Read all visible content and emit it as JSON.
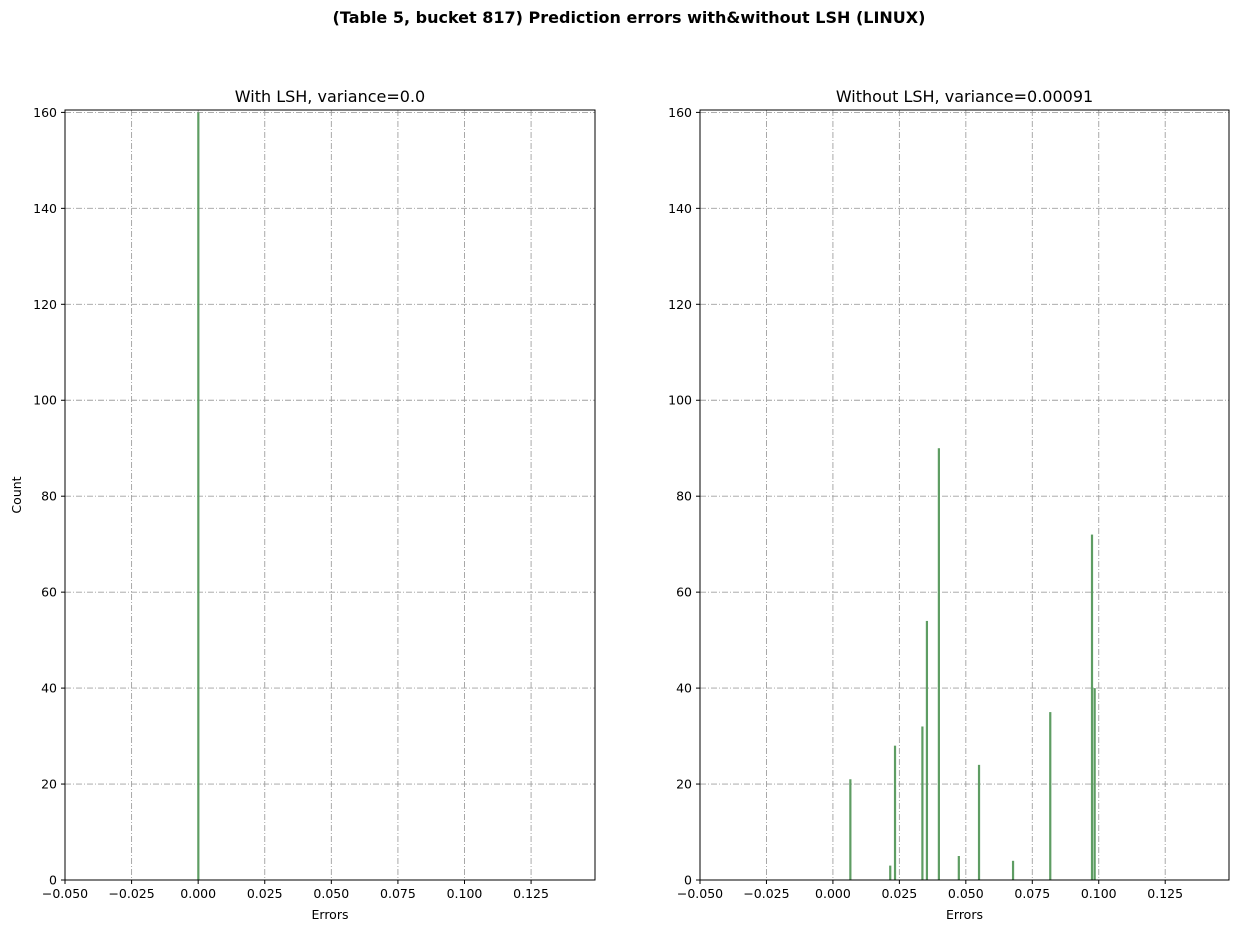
{
  "figure": {
    "title": "(Table 5, bucket 817) Prediction errors with&without LSH (LINUX)"
  },
  "chart_data": [
    {
      "type": "bar",
      "title": "With LSH, variance=0.0",
      "xlabel": "Errors",
      "ylabel": "Count",
      "xlim": [
        -0.05,
        0.149
      ],
      "ylim": [
        0,
        160.5
      ],
      "xticks": [
        -0.05,
        -0.025,
        0.0,
        0.025,
        0.05,
        0.075,
        0.1,
        0.125
      ],
      "xtick_labels": [
        "−0.050",
        "−0.025",
        "0.000",
        "0.025",
        "0.050",
        "0.075",
        "0.100",
        "0.125"
      ],
      "yticks": [
        0,
        20,
        40,
        60,
        80,
        100,
        120,
        140,
        160
      ],
      "ytick_labels": [
        "0",
        "20",
        "40",
        "60",
        "80",
        "100",
        "120",
        "140",
        "160"
      ],
      "grid": true,
      "bar_color": "#5e9d63",
      "bar_width": 0.0007,
      "bars": [
        {
          "x": 0.0,
          "count": 160
        }
      ]
    },
    {
      "type": "bar",
      "title": "Without LSH, variance=0.00091",
      "xlabel": "Errors",
      "ylabel": "",
      "xlim": [
        -0.05,
        0.149
      ],
      "ylim": [
        0,
        160.5
      ],
      "xticks": [
        -0.05,
        -0.025,
        0.0,
        0.025,
        0.05,
        0.075,
        0.1,
        0.125
      ],
      "xtick_labels": [
        "−0.050",
        "−0.025",
        "0.000",
        "0.025",
        "0.050",
        "0.075",
        "0.100",
        "0.125"
      ],
      "yticks": [
        0,
        20,
        40,
        60,
        80,
        100,
        120,
        140,
        160
      ],
      "ytick_labels": [
        "0",
        "20",
        "40",
        "60",
        "80",
        "100",
        "120",
        "140",
        "160"
      ],
      "grid": true,
      "bar_color": "#5e9d63",
      "bar_width": 0.0007,
      "bars": [
        {
          "x": 0.0065,
          "count": 21
        },
        {
          "x": 0.0215,
          "count": 3
        },
        {
          "x": 0.0233,
          "count": 28
        },
        {
          "x": 0.0336,
          "count": 32
        },
        {
          "x": 0.0353,
          "count": 54
        },
        {
          "x": 0.0398,
          "count": 90
        },
        {
          "x": 0.0473,
          "count": 5
        },
        {
          "x": 0.0549,
          "count": 24
        },
        {
          "x": 0.0677,
          "count": 4
        },
        {
          "x": 0.0817,
          "count": 35
        },
        {
          "x": 0.0974,
          "count": 72
        },
        {
          "x": 0.0984,
          "count": 40
        }
      ]
    }
  ]
}
